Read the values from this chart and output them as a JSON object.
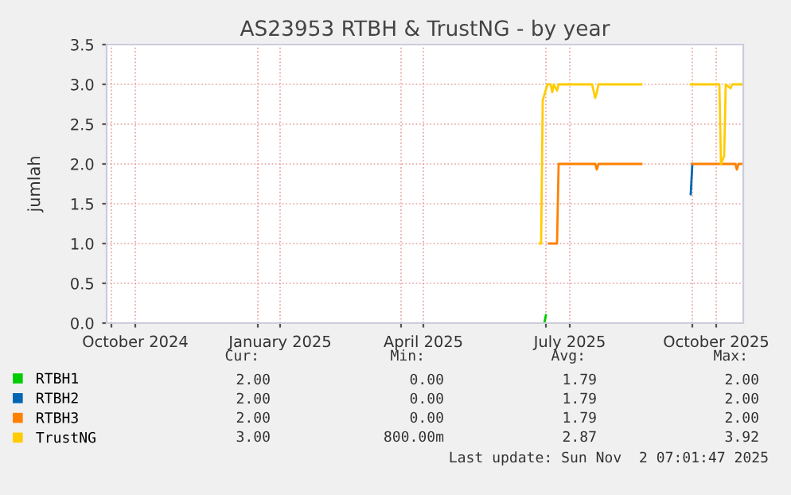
{
  "chart_data": {
    "type": "line",
    "title": "AS23953 RTBH & TrustNG - by year",
    "ylabel": "jumlah",
    "xlim": [
      "2024-09-28",
      "2025-11-02"
    ],
    "xticks": [
      {
        "value": "2024-10-01",
        "label": null
      },
      {
        "value": "2024-10-16",
        "label": "October 2024"
      },
      {
        "value": "2025-01-01",
        "label": null
      },
      {
        "value": "2025-01-15",
        "label": "January 2025"
      },
      {
        "value": "2025-04-01",
        "label": null
      },
      {
        "value": "2025-04-15",
        "label": "April 2025"
      },
      {
        "value": "2025-07-01",
        "label": null
      },
      {
        "value": "2025-07-16",
        "label": "July 2025"
      },
      {
        "value": "2025-10-01",
        "label": null
      },
      {
        "value": "2025-10-16",
        "label": "October 2025"
      }
    ],
    "ylim": [
      0,
      3.5
    ],
    "yticks": [
      {
        "value": 0,
        "label": "0.0"
      },
      {
        "value": 0.5,
        "label": "0.5"
      },
      {
        "value": 1,
        "label": "1.0"
      },
      {
        "value": 1.5,
        "label": "1.5"
      },
      {
        "value": 2,
        "label": "2.0"
      },
      {
        "value": 2.5,
        "label": "2.5"
      },
      {
        "value": 3,
        "label": "3.0"
      },
      {
        "value": 3.5,
        "label": "3.5"
      }
    ],
    "grid": true,
    "legend": "bottom",
    "series": [
      {
        "name": "RTBH1",
        "color": "#00cc00",
        "x": [
          "2025-06-30",
          "2025-07-01"
        ],
        "values": [
          0.0,
          0.1
        ]
      },
      {
        "name": "RTBH2",
        "color": "#0066b3",
        "x": [
          "2025-09-30",
          "2025-10-01"
        ],
        "values": [
          1.62,
          2.0
        ]
      },
      {
        "name": "RTBH3",
        "color": "#ff8000",
        "x": [
          "2025-07-03",
          "2025-07-08",
          "2025-07-09",
          "2025-08-01",
          "2025-08-02",
          "2025-08-03",
          "2025-08-30",
          "2025-09-15",
          "2025-10-01",
          "2025-10-28",
          "2025-10-29",
          "2025-10-30",
          "2025-11-01"
        ],
        "values": [
          1.0,
          1.0,
          2.0,
          2.0,
          1.93,
          2.0,
          2.0,
          null,
          2.0,
          2.0,
          1.93,
          2.0,
          2.0
        ]
      },
      {
        "name": "TrustNG",
        "color": "#ffcc00",
        "x": [
          "2025-06-27",
          "2025-06-28",
          "2025-06-29",
          "2025-07-02",
          "2025-07-04",
          "2025-07-05",
          "2025-07-06",
          "2025-07-08",
          "2025-07-09",
          "2025-07-30",
          "2025-08-01",
          "2025-08-02",
          "2025-08-03",
          "2025-08-30",
          "2025-09-15",
          "2025-09-30",
          "2025-10-18",
          "2025-10-19",
          "2025-10-21",
          "2025-10-22",
          "2025-10-25",
          "2025-10-26",
          "2025-11-01"
        ],
        "values": [
          1.0,
          1.0,
          2.8,
          3.0,
          3.0,
          2.9,
          3.0,
          2.92,
          3.0,
          3.0,
          2.83,
          2.9,
          3.0,
          3.0,
          null,
          3.0,
          3.0,
          2.0,
          2.1,
          3.0,
          2.95,
          3.0,
          3.0
        ]
      }
    ],
    "annotations": [
      "Cur:",
      "Min:",
      "Avg:",
      "Max:",
      "2.00",
      "0.00",
      "1.79",
      "2.00",
      "2.00",
      "0.00",
      "1.79",
      "2.00",
      "2.00",
      "0.00",
      "1.79",
      "2.00",
      "3.00",
      "800.00m",
      "2.87",
      "3.92",
      "Last update: Sun Nov  2 07:01:47 2025"
    ]
  }
}
